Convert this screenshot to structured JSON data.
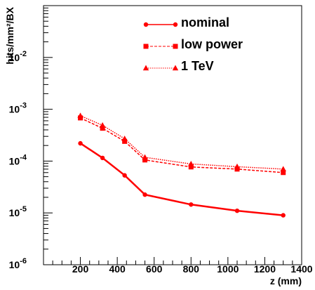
{
  "chart_data": {
    "type": "line",
    "title": "",
    "xlabel": "z (mm)",
    "ylabel": "hits/mm²/BX",
    "x_scale": "linear",
    "y_scale": "log",
    "xlim": [
      0,
      1400
    ],
    "ylim": [
      1e-06,
      0.1
    ],
    "x_ticks": [
      200,
      400,
      600,
      800,
      1000,
      1200,
      1400
    ],
    "y_ticks": [
      {
        "value": 1e-06,
        "mantissa": "10",
        "exponent": "-6"
      },
      {
        "value": 1e-05,
        "mantissa": "10",
        "exponent": "-5"
      },
      {
        "value": 0.0001,
        "mantissa": "10",
        "exponent": "-4"
      },
      {
        "value": 0.001,
        "mantissa": "10",
        "exponent": "-3"
      },
      {
        "value": 0.01,
        "mantissa": "10",
        "exponent": "-2"
      }
    ],
    "grid": false,
    "legend_position": "top-center",
    "x": [
      200,
      320,
      440,
      550,
      800,
      1050,
      1300
    ],
    "series": [
      {
        "name": "nominal",
        "color": "#ff0000",
        "line_style": "solid",
        "marker": "circle",
        "values": [
          0.00022,
          0.000115,
          5.3e-05,
          2.25e-05,
          1.45e-05,
          1.1e-05,
          9e-06
        ]
      },
      {
        "name": "low power",
        "color": "#ff0000",
        "line_style": "dashed",
        "marker": "square",
        "values": [
          0.00068,
          0.00043,
          0.00024,
          0.000105,
          7.7e-05,
          7e-05,
          6e-05
        ]
      },
      {
        "name": "1 TeV",
        "color": "#ff0000",
        "line_style": "dotted",
        "marker": "triangle",
        "values": [
          0.00075,
          0.00049,
          0.00027,
          0.000118,
          8.8e-05,
          7.8e-05,
          7e-05
        ]
      }
    ]
  }
}
